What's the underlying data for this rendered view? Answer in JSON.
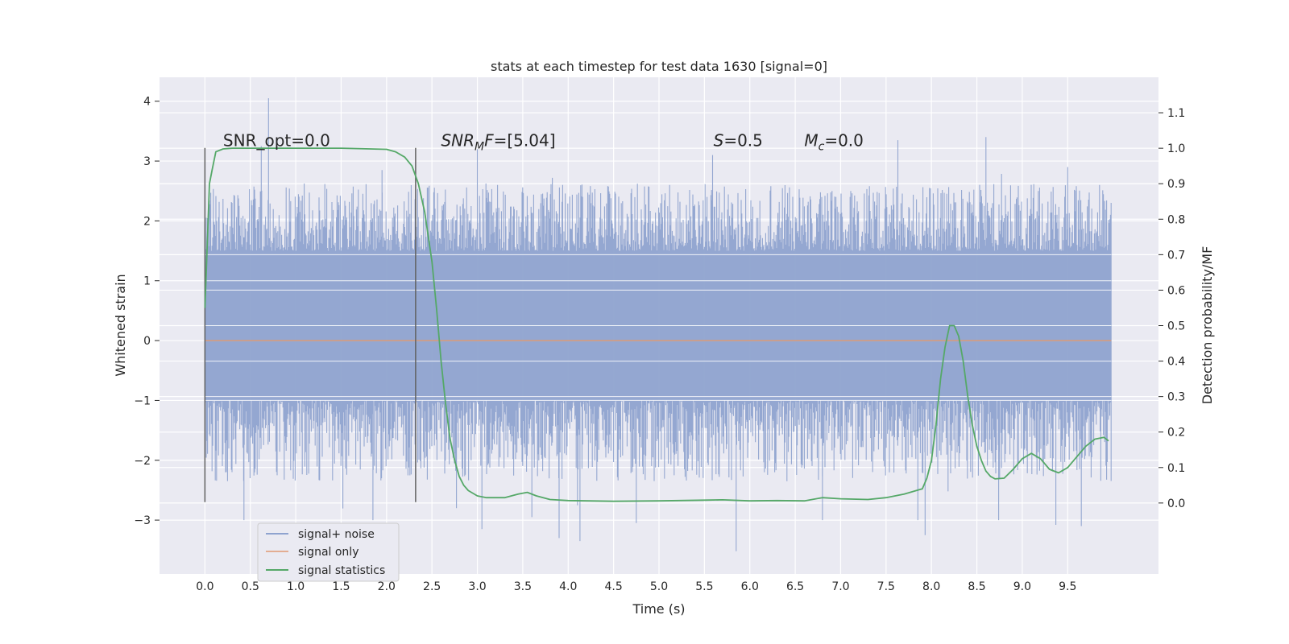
{
  "chart_data": {
    "type": "line",
    "title": "stats at each timestep for test data 1630 [signal=0]",
    "xlabel": "Time (s)",
    "ylabel": "Whitened strain",
    "ylabel_right": "Detection probability/MF",
    "xlim": [
      -0.5,
      10.5
    ],
    "ylim": [
      -3.9,
      4.4
    ],
    "ylim_right": [
      -0.2,
      1.2
    ],
    "x_ticks": [
      "0.0",
      "0.5",
      "1.0",
      "1.5",
      "2.0",
      "2.5",
      "3.0",
      "3.5",
      "4.0",
      "4.5",
      "5.0",
      "5.5",
      "6.0",
      "6.5",
      "7.0",
      "7.5",
      "8.0",
      "8.5",
      "9.0",
      "9.5"
    ],
    "y_ticks": [
      -3,
      -2,
      -1,
      0,
      1,
      2,
      3,
      4
    ],
    "y_tick_labels": [
      "−3",
      "−2",
      "−1",
      "0",
      "1",
      "2",
      "3",
      "4"
    ],
    "y_ticks_right": [
      0.0,
      0.1,
      0.2,
      0.3,
      0.4,
      0.5,
      0.6,
      0.7,
      0.8,
      0.9,
      1.0,
      1.1
    ],
    "y_tick_labels_right": [
      "0.0",
      "0.1",
      "0.2",
      "0.3",
      "0.4",
      "0.5",
      "0.6",
      "0.7",
      "0.8",
      "0.9",
      "1.0",
      "1.1"
    ],
    "grid": true,
    "legend_position": "lower-left",
    "colors": {
      "noise": "#8fa3cf",
      "signal": "#dd8452",
      "stats": "#55a868",
      "background": "#eaeaf2",
      "vline": "#606060"
    },
    "annotations": [
      {
        "text": "SNR_opt=0.0",
        "x": 0.2
      },
      {
        "text": "SNR",
        "sub": "M",
        "after": "F=[5.04]",
        "x": 2.6
      },
      {
        "text": "S",
        "after": "=0.5",
        "x": 5.6
      },
      {
        "text": "M",
        "sub": "c",
        "after": "=0.0",
        "x": 6.6
      }
    ],
    "annotation_y": 3.25,
    "vlines": [
      {
        "x": 0.0,
        "ymin": -2.7,
        "ymax": 3.22
      },
      {
        "x": 2.32,
        "ymin": -2.7,
        "ymax": 3.22
      }
    ],
    "noise": {
      "x_range": [
        0.0,
        9.98
      ],
      "core_range": [
        -1.0,
        1.5
      ],
      "typical_peak_upper": 2.4,
      "typical_peak_lower": -2.0,
      "upper_extremes": [
        [
          0.7,
          4.05
        ],
        [
          0.62,
          3.25
        ],
        [
          5.59,
          3.1
        ],
        [
          7.63,
          3.35
        ],
        [
          8.6,
          3.4
        ],
        [
          3.0,
          3.2
        ],
        [
          1.95,
          2.85
        ],
        [
          9.5,
          2.9
        ]
      ],
      "lower_extremes": [
        [
          5.85,
          -3.52
        ],
        [
          4.13,
          -3.35
        ],
        [
          3.9,
          -3.3
        ],
        [
          0.43,
          -3.0
        ],
        [
          8.74,
          -3.0
        ],
        [
          9.37,
          -3.08
        ],
        [
          9.65,
          -3.1
        ],
        [
          3.05,
          -3.15
        ],
        [
          1.85,
          -3.0
        ],
        [
          3.6,
          -2.95
        ],
        [
          4.75,
          -3.05
        ],
        [
          6.8,
          -3.0
        ],
        [
          2.77,
          -2.8
        ],
        [
          7.93,
          -3.25
        ],
        [
          7.85,
          -3.0
        ]
      ]
    },
    "series": [
      {
        "name": "signal+ noise",
        "role": "noise"
      },
      {
        "name": "signal only",
        "role": "signal",
        "x": [
          0.0,
          9.98
        ],
        "values": [
          0.0,
          0.0
        ]
      },
      {
        "name": "signal statistics",
        "role": "stats",
        "axis": "right",
        "x": [
          0.0,
          0.05,
          0.08,
          0.12,
          0.2,
          0.3,
          0.5,
          1.0,
          1.5,
          2.0,
          2.1,
          2.2,
          2.28,
          2.35,
          2.42,
          2.5,
          2.55,
          2.6,
          2.65,
          2.7,
          2.75,
          2.8,
          2.85,
          2.9,
          3.0,
          3.1,
          3.3,
          3.45,
          3.55,
          3.65,
          3.8,
          4.0,
          4.5,
          5.0,
          5.5,
          5.7,
          6.0,
          6.3,
          6.6,
          6.8,
          7.0,
          7.3,
          7.5,
          7.7,
          7.9,
          7.95,
          8.0,
          8.05,
          8.1,
          8.15,
          8.2,
          8.25,
          8.3,
          8.35,
          8.4,
          8.45,
          8.5,
          8.55,
          8.6,
          8.65,
          8.7,
          8.8,
          8.9,
          9.0,
          9.1,
          9.2,
          9.3,
          9.4,
          9.5,
          9.6,
          9.7,
          9.8,
          9.9,
          9.95
        ],
        "values": [
          0.55,
          0.9,
          0.94,
          0.99,
          0.998,
          1.0,
          1.0,
          1.0,
          1.0,
          0.997,
          0.99,
          0.975,
          0.95,
          0.9,
          0.82,
          0.68,
          0.55,
          0.4,
          0.28,
          0.18,
          0.12,
          0.075,
          0.05,
          0.035,
          0.02,
          0.015,
          0.015,
          0.025,
          0.03,
          0.02,
          0.01,
          0.007,
          0.005,
          0.006,
          0.008,
          0.009,
          0.006,
          0.007,
          0.006,
          0.015,
          0.012,
          0.01,
          0.015,
          0.025,
          0.04,
          0.07,
          0.12,
          0.22,
          0.35,
          0.44,
          0.5,
          0.5,
          0.47,
          0.4,
          0.3,
          0.22,
          0.16,
          0.12,
          0.09,
          0.075,
          0.068,
          0.07,
          0.095,
          0.125,
          0.14,
          0.125,
          0.095,
          0.085,
          0.1,
          0.13,
          0.16,
          0.18,
          0.185,
          0.175
        ]
      }
    ]
  }
}
